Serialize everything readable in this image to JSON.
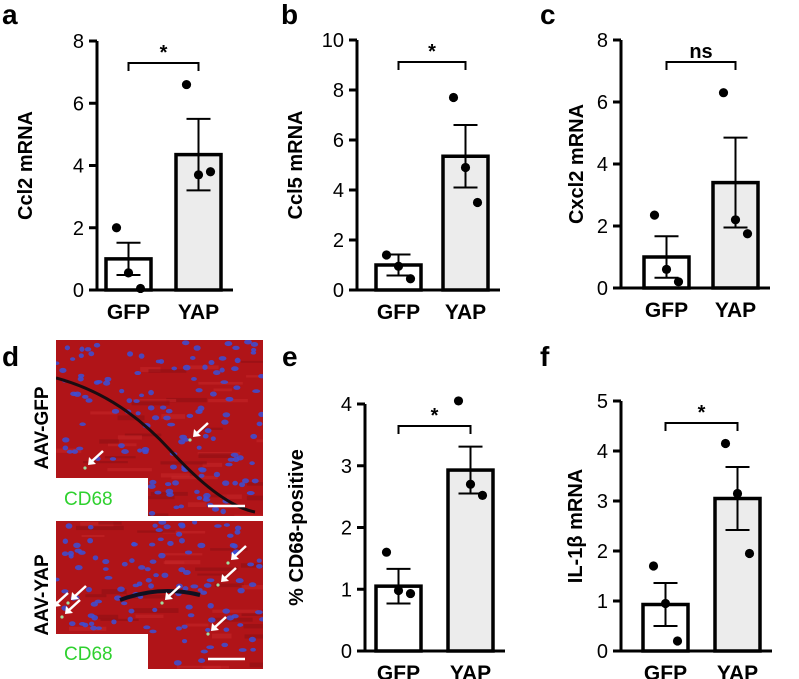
{
  "panel_letters": [
    "a",
    "b",
    "c",
    "d",
    "e",
    "f"
  ],
  "micrograph": {
    "rows": [
      {
        "side_label": "AAV-GFP",
        "stain_label": "CD68",
        "arrow_count": 2
      },
      {
        "side_label": "AAV-YAP",
        "stain_label": "CD68",
        "arrow_count": 7
      }
    ],
    "colors": {
      "tissue": "#b01418",
      "nuclei": "#3b4fd8",
      "label_text": "#2fd12f",
      "arrow": "#ffffff"
    }
  },
  "chart_data": [
    {
      "panel": "a",
      "type": "bar",
      "categories": [
        "GFP",
        "YAP"
      ],
      "ylabel": "Ccl2 mRNA",
      "ylim": [
        0,
        8
      ],
      "yticks": [
        "0",
        "2",
        "4",
        "6",
        "8"
      ],
      "values": [
        1.0,
        4.35
      ],
      "sem": [
        0.52,
        1.15
      ],
      "points": [
        [
          2.0,
          0.55,
          0.05
        ],
        [
          6.6,
          3.7,
          3.8
        ]
      ],
      "significance": "*",
      "bar_fills": [
        "#ffffff",
        "#ececec"
      ]
    },
    {
      "panel": "b",
      "type": "bar",
      "categories": [
        "GFP",
        "YAP"
      ],
      "ylabel": "Ccl5 mRNA",
      "ylim": [
        0,
        10
      ],
      "yticks": [
        "0",
        "2",
        "4",
        "6",
        "8",
        "10"
      ],
      "values": [
        1.0,
        5.35
      ],
      "sem": [
        0.42,
        1.25
      ],
      "points": [
        [
          1.4,
          0.95,
          0.45
        ],
        [
          7.7,
          4.9,
          3.5
        ]
      ],
      "significance": "*",
      "bar_fills": [
        "#ffffff",
        "#ececec"
      ]
    },
    {
      "panel": "c",
      "type": "bar",
      "categories": [
        "GFP",
        "YAP"
      ],
      "ylabel": "Cxcl2 mRNA",
      "ylim": [
        0,
        8
      ],
      "yticks": [
        "0",
        "2",
        "4",
        "6",
        "8"
      ],
      "values": [
        1.0,
        3.4
      ],
      "sem": [
        0.67,
        1.45
      ],
      "points": [
        [
          2.35,
          0.6,
          0.2
        ],
        [
          6.3,
          2.2,
          1.75
        ]
      ],
      "significance": "ns",
      "bar_fills": [
        "#ffffff",
        "#ececec"
      ]
    },
    {
      "panel": "e",
      "type": "bar",
      "categories": [
        "GFP",
        "YAP"
      ],
      "ylabel": "% CD68-positive",
      "ylim": [
        0,
        4
      ],
      "yticks": [
        "0",
        "1",
        "2",
        "3",
        "4"
      ],
      "values": [
        1.05,
        2.93
      ],
      "sem": [
        0.28,
        0.38
      ],
      "points": [
        [
          1.6,
          0.98,
          0.93
        ],
        [
          4.05,
          2.7,
          2.52
        ]
      ],
      "significance": "*",
      "bar_fills": [
        "#ffffff",
        "#ececec"
      ]
    },
    {
      "panel": "f",
      "type": "bar",
      "categories": [
        "GFP",
        "YAP"
      ],
      "ylabel": "IL-1β mRNA",
      "ylim": [
        0,
        5
      ],
      "yticks": [
        "0",
        "1",
        "2",
        "3",
        "4",
        "5"
      ],
      "values": [
        0.93,
        3.05
      ],
      "sem": [
        0.43,
        0.63
      ],
      "points": [
        [
          1.7,
          0.95,
          0.2
        ],
        [
          4.15,
          3.15,
          1.95
        ]
      ],
      "significance": "*",
      "bar_fills": [
        "#ffffff",
        "#ececec"
      ]
    }
  ]
}
